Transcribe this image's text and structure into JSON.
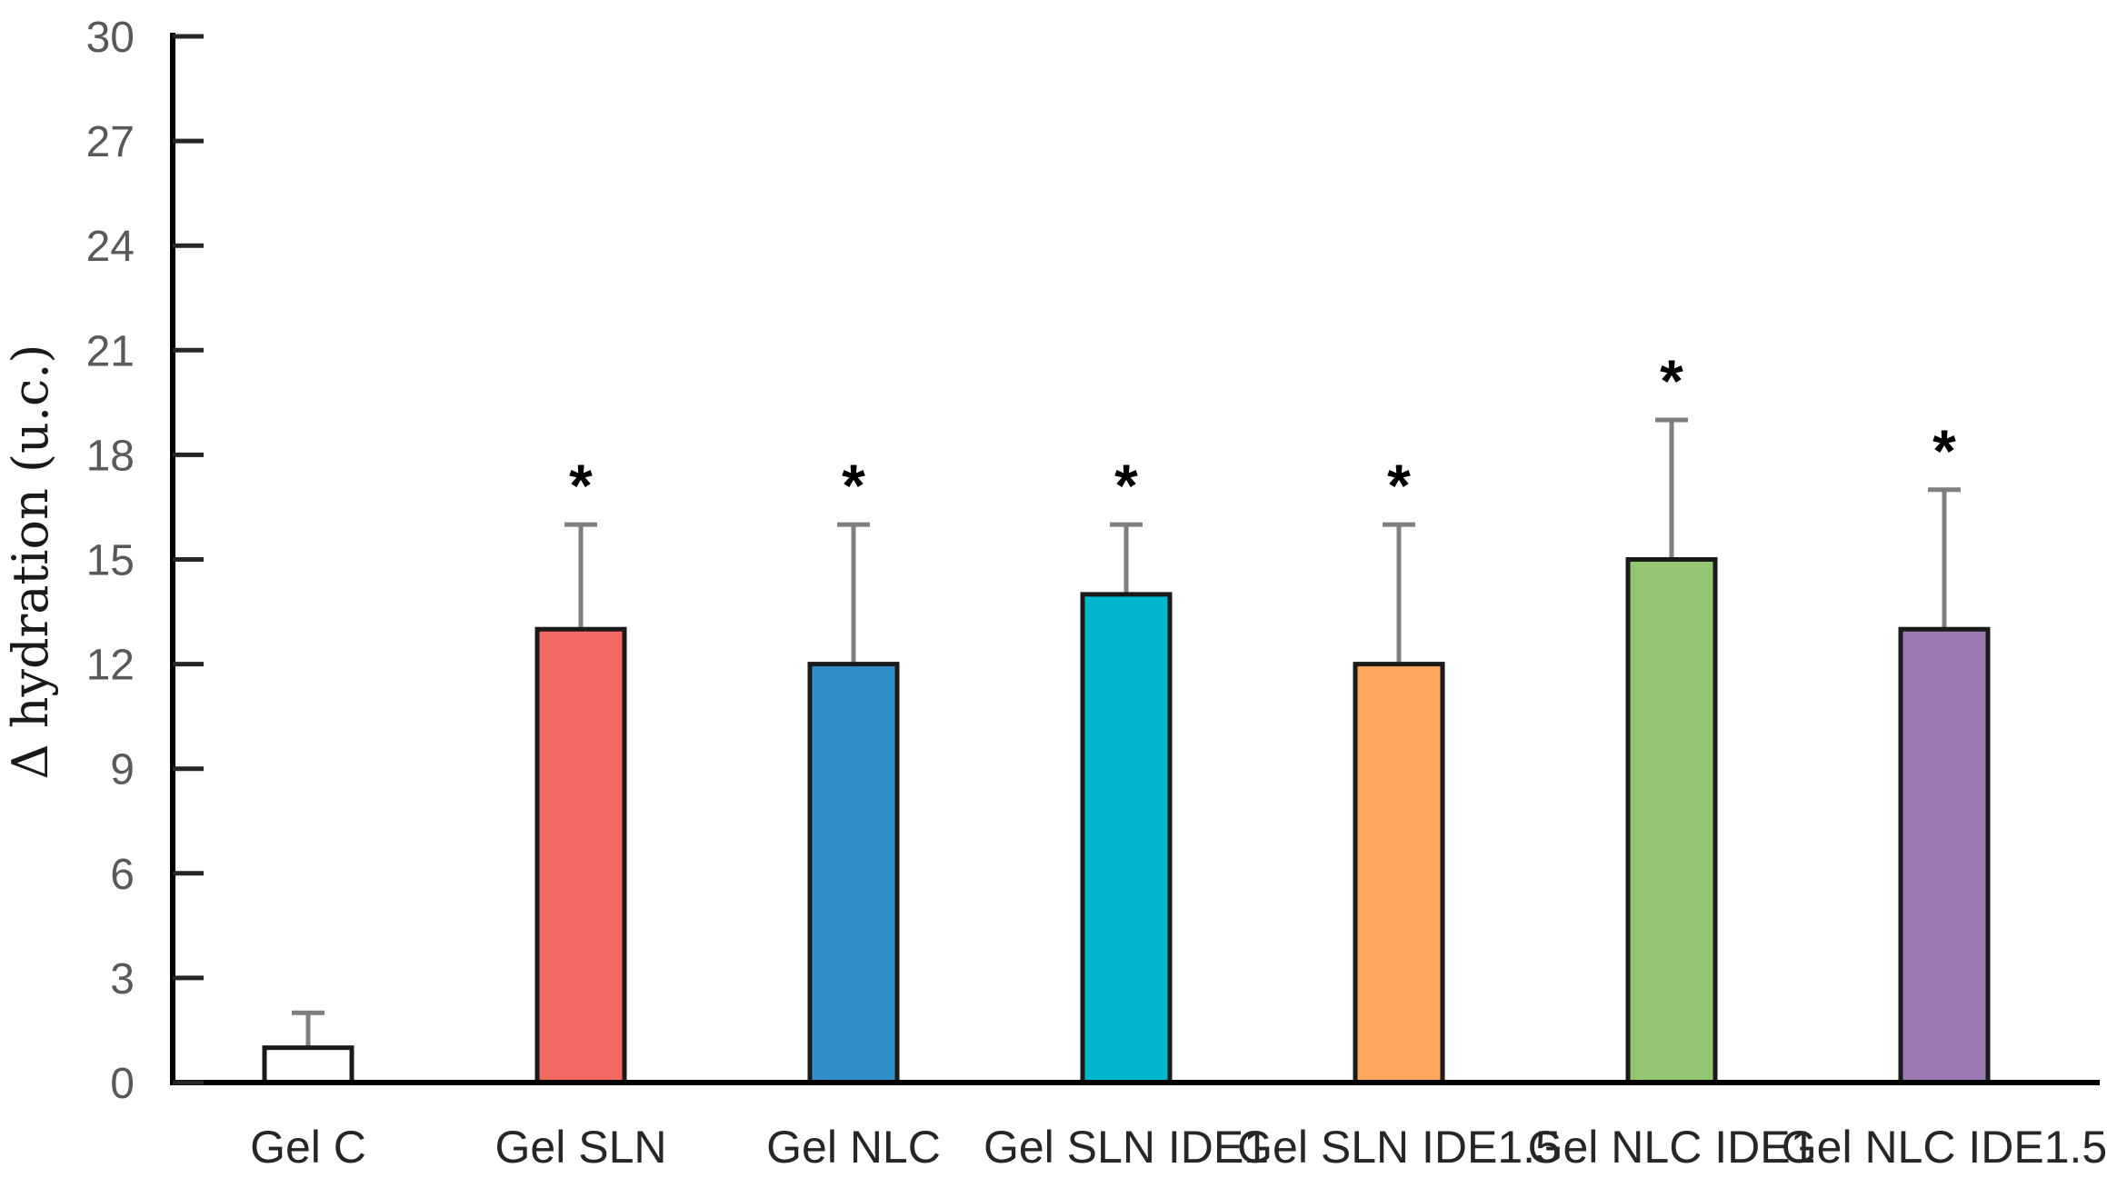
{
  "figure": {
    "background_color": "#FFFFFF"
  },
  "chart_data": {
    "type": "bar",
    "title": "",
    "xlabel": "",
    "ylabel": "Δ hydration (u.c.)",
    "categories": [
      "Gel C",
      "Gel SLN",
      "Gel NLC",
      "Gel SLN IDE1",
      "Gel SLN IDE1.5",
      "Gel NLC IDE1",
      "Gel NLC IDE1.5"
    ],
    "values": [
      1,
      13,
      12,
      14,
      12,
      15,
      13
    ],
    "errors_plus": [
      1,
      3,
      4,
      2,
      4,
      4,
      4
    ],
    "significance_labels": [
      "",
      "*",
      "*",
      "*",
      "*",
      "*",
      "*"
    ],
    "bar_colors": [
      "#FFFFFF",
      "#F26862",
      "#3090CB",
      "#00B7D0",
      "#FDA75D",
      "#93C572",
      "#9C7AB1"
    ],
    "bar_edge_color": "#1A1A1A",
    "error_bar_color": "#7F7F7F",
    "axis_color": "#000000",
    "tick_mark_color": "#262626",
    "tick_label_color": "#595959",
    "category_label_color": "#262626",
    "significance_color": "#000000",
    "ylim": [
      0,
      30
    ],
    "yticks": [
      0,
      3,
      6,
      9,
      12,
      15,
      18,
      21,
      24,
      27,
      30
    ],
    "grid": false,
    "legend": "none"
  }
}
